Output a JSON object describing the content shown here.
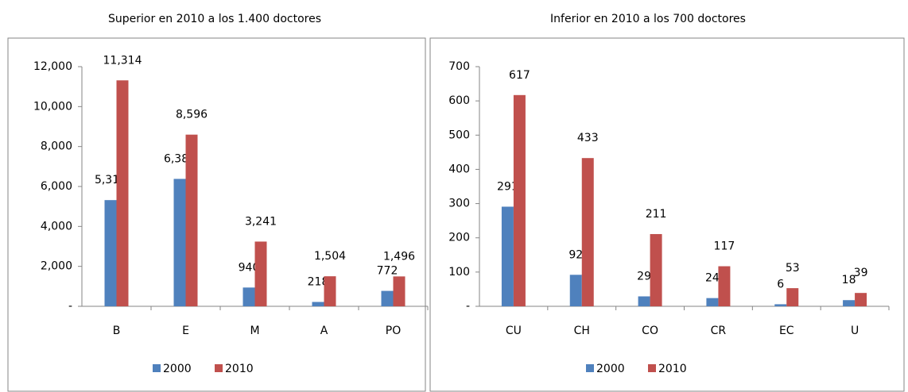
{
  "chart_data": [
    {
      "type": "bar",
      "title": "Superior en 2010 a los 1.400 doctores",
      "categories": [
        "B",
        "E",
        "M",
        "A",
        "PO"
      ],
      "series": [
        {
          "name": "2000",
          "color": "#4f81bd",
          "values": [
            5318,
            6380,
            940,
            218,
            772
          ],
          "value_labels": [
            "5,318",
            "6,380",
            "940",
            "218",
            "772"
          ]
        },
        {
          "name": "2010",
          "color": "#c0504d",
          "values": [
            11314,
            8596,
            3241,
            1504,
            1496
          ],
          "value_labels": [
            "11,314",
            "8,596",
            "3,241",
            "1,504",
            "1,496"
          ]
        }
      ],
      "ylim": [
        0,
        12000
      ],
      "yticks": [
        {
          "value": 0,
          "label": "-"
        },
        {
          "value": 2000,
          "label": "2,000"
        },
        {
          "value": 4000,
          "label": "4,000"
        },
        {
          "value": 6000,
          "label": "6,000"
        },
        {
          "value": 8000,
          "label": "8,000"
        },
        {
          "value": 10000,
          "label": "10,000"
        },
        {
          "value": 12000,
          "label": "12,000"
        }
      ],
      "legend": "bottom"
    },
    {
      "type": "bar",
      "title": "Inferior en 2010 a los 700 doctores",
      "categories": [
        "CU",
        "CH",
        "CO",
        "CR",
        "EC",
        "U"
      ],
      "series": [
        {
          "name": "2000",
          "color": "#4f81bd",
          "values": [
            291,
            92,
            29,
            24,
            6,
            18
          ]
        },
        {
          "name": "2010",
          "color": "#c0504d",
          "values": [
            617,
            433,
            211,
            117,
            53,
            39
          ]
        }
      ],
      "ylim": [
        0,
        700
      ],
      "yticks": [
        {
          "value": 0,
          "label": "-"
        },
        100,
        200,
        300,
        400,
        500,
        600,
        700
      ],
      "legend": "bottom"
    }
  ]
}
